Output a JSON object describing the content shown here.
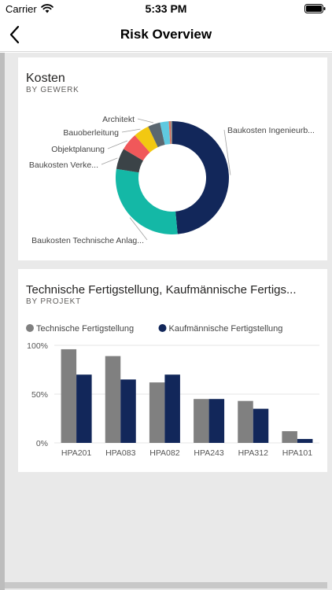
{
  "status_bar": {
    "carrier": "Carrier",
    "time": "5:33 PM"
  },
  "nav": {
    "title": "Risk Overview"
  },
  "cards": [
    {
      "title": "Kosten",
      "subtitle": "BY GEWERK"
    },
    {
      "title": "Technische Fertigstellung, Kaufmännische Fertigs...",
      "subtitle": "BY PROJEKT"
    }
  ],
  "chart_data": [
    {
      "type": "pie",
      "title": "Kosten",
      "subtitle": "BY GEWERK",
      "slices": [
        {
          "label": "Baukosten Ingenieurb...",
          "value": 48.5,
          "color": "#12275a"
        },
        {
          "label": "Baukosten Technische Anlag...",
          "value": 29.0,
          "color": "#14b8a6"
        },
        {
          "label": "Baukosten Verke...",
          "value": 6.0,
          "color": "#3b4347"
        },
        {
          "label": "Objektplanung",
          "value": 5.0,
          "color": "#f0585a"
        },
        {
          "label": "Bauoberleitung",
          "value": 4.5,
          "color": "#f2c811"
        },
        {
          "label": "Architekt",
          "value": 3.5,
          "color": "#5b6770"
        },
        {
          "label": "",
          "value": 2.5,
          "color": "#5fc9e0"
        },
        {
          "label": "",
          "value": 0.5,
          "color": "#e0705a"
        },
        {
          "label": "",
          "value": 0.5,
          "color": "#8a8a8a"
        }
      ]
    },
    {
      "type": "bar",
      "title": "Technische Fertigstellung, Kaufmännische Fertigs...",
      "subtitle": "BY PROJEKT",
      "categories": [
        "HPA201",
        "HPA083",
        "HPA082",
        "HPA243",
        "HPA312",
        "HPA101"
      ],
      "series": [
        {
          "name": "Technische Fertigstellung",
          "color": "#808080",
          "values": [
            96,
            89,
            62,
            45,
            43,
            12
          ]
        },
        {
          "name": "Kaufmännische Fertigstellung",
          "color": "#12275a",
          "values": [
            70,
            65,
            70,
            45,
            35,
            4
          ]
        }
      ],
      "ylim": [
        0,
        100
      ],
      "yticks": [
        {
          "value": 0,
          "label": "0%"
        },
        {
          "value": 50,
          "label": "50%"
        },
        {
          "value": 100,
          "label": "100%"
        }
      ],
      "grid": true,
      "legend": "top-left"
    }
  ]
}
